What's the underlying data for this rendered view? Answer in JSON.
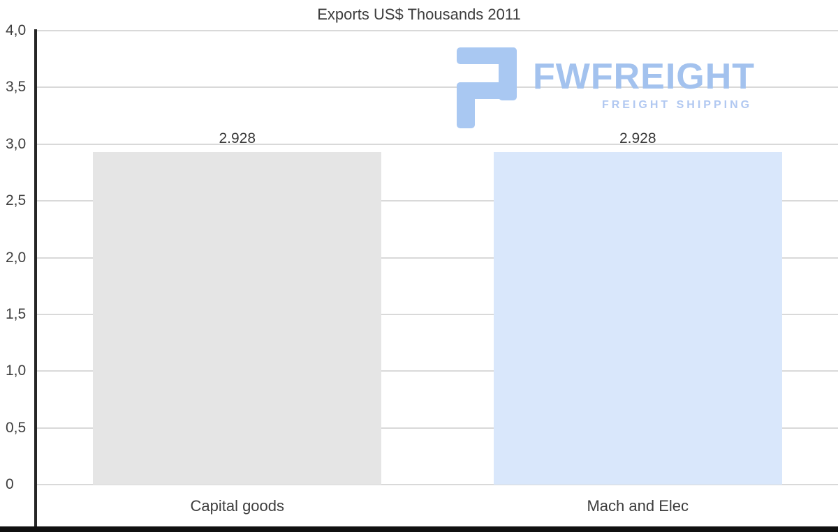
{
  "chart_data": {
    "type": "bar",
    "title": "Exports US$ Thousands 2011",
    "categories": [
      "Capital goods",
      "Mach and Elec"
    ],
    "values": [
      2.928,
      2.928
    ],
    "value_labels": [
      "2.928",
      "2.928"
    ],
    "ylim": [
      0,
      4
    ],
    "yticks": [
      {
        "value": 4.0,
        "label": "4,0"
      },
      {
        "value": 3.5,
        "label": "3,5"
      },
      {
        "value": 3.0,
        "label": "3,0"
      },
      {
        "value": 2.5,
        "label": "2,5"
      },
      {
        "value": 2.0,
        "label": "2,0"
      },
      {
        "value": 1.5,
        "label": "1,5"
      },
      {
        "value": 1.0,
        "label": "1,0"
      },
      {
        "value": 0.5,
        "label": "0,5"
      },
      {
        "value": 0,
        "label": "0"
      }
    ],
    "grid": true,
    "legend": false,
    "bar_colors": [
      "#e5e5e5",
      "#d9e7fb"
    ],
    "gridline_color": "#d9d9d9",
    "axis_color": "#262626"
  },
  "watermark": {
    "brand": "FWFREIGHT",
    "tagline": "FREIGHT SHIPPING",
    "brand_color": "#a3c2ee",
    "icon_color": "#a9c8f2"
  }
}
